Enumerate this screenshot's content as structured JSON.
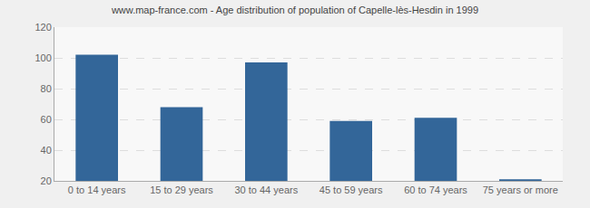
{
  "chart_data": {
    "type": "bar",
    "title": "www.map-france.com - Age distribution of population of Capelle-lès-Hesdin in 1999",
    "categories": [
      "0 to 14 years",
      "15 to 29 years",
      "30 to 44 years",
      "45 to 59 years",
      "60 to 74 years",
      "75 years or more"
    ],
    "values": [
      102,
      68,
      97,
      59,
      61,
      21
    ],
    "color": "#336699",
    "ylim": [
      20,
      120
    ],
    "yticks": [
      20,
      40,
      60,
      80,
      100,
      120
    ],
    "grid": true
  }
}
